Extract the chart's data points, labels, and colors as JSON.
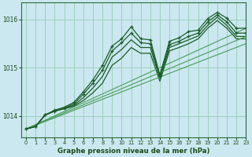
{
  "xlabel": "Graphe pression niveau de la mer (hPa)",
  "xlim": [
    -0.5,
    23
  ],
  "ylim": [
    1013.55,
    1016.35
  ],
  "yticks": [
    1014,
    1015,
    1016
  ],
  "xticks": [
    0,
    1,
    2,
    3,
    4,
    5,
    6,
    7,
    8,
    9,
    10,
    11,
    12,
    13,
    14,
    15,
    16,
    17,
    18,
    19,
    20,
    21,
    22,
    23
  ],
  "bg_color": "#cbe8f0",
  "grid_color": "#9dcfbb",
  "line_color_dark": "#1a5c28",
  "line_color_light": "#4a9c5a",
  "series": [
    {
      "x": [
        0,
        1,
        2,
        3,
        4,
        5,
        6,
        7,
        8,
        9,
        10,
        11,
        12,
        13,
        14,
        15,
        16,
        17,
        18,
        19,
        20,
        21,
        22,
        23
      ],
      "y": [
        1013.73,
        1013.78,
        1014.02,
        1014.12,
        1014.18,
        1014.28,
        1014.5,
        1014.75,
        1015.05,
        1015.45,
        1015.6,
        1015.85,
        1015.6,
        1015.58,
        1014.85,
        1015.55,
        1015.62,
        1015.75,
        1015.78,
        1016.02,
        1016.15,
        1016.03,
        1015.82,
        1015.82
      ],
      "marker": true,
      "lw": 0.9,
      "color": "#1a5c28"
    },
    {
      "x": [
        0,
        1,
        2,
        3,
        4,
        5,
        6,
        7,
        8,
        9,
        10,
        11,
        12,
        13,
        14,
        15,
        16,
        17,
        18,
        19,
        20,
        21,
        22,
        23
      ],
      "y": [
        1013.73,
        1013.78,
        1014.02,
        1014.1,
        1014.16,
        1014.25,
        1014.45,
        1014.68,
        1014.95,
        1015.35,
        1015.52,
        1015.72,
        1015.52,
        1015.5,
        1014.82,
        1015.48,
        1015.55,
        1015.65,
        1015.72,
        1015.95,
        1016.1,
        1015.95,
        1015.72,
        1015.72
      ],
      "marker": true,
      "lw": 0.9,
      "color": "#1a5c28"
    },
    {
      "x": [
        0,
        1,
        2,
        3,
        4,
        5,
        6,
        7,
        8,
        9,
        10,
        11,
        12,
        13,
        14,
        15,
        16,
        17,
        18,
        19,
        20,
        21,
        22,
        23
      ],
      "y": [
        1013.73,
        1013.78,
        1014.02,
        1014.1,
        1014.15,
        1014.22,
        1014.38,
        1014.58,
        1014.82,
        1015.22,
        1015.38,
        1015.58,
        1015.42,
        1015.42,
        1014.78,
        1015.42,
        1015.5,
        1015.58,
        1015.66,
        1015.88,
        1016.05,
        1015.88,
        1015.65,
        1015.65
      ],
      "marker": false,
      "lw": 0.9,
      "color": "#1a5c28"
    },
    {
      "x": [
        0,
        1,
        2,
        3,
        4,
        5,
        6,
        7,
        8,
        9,
        10,
        11,
        12,
        13,
        14,
        15,
        16,
        17,
        18,
        19,
        20,
        21,
        22,
        23
      ],
      "y": [
        1013.73,
        1013.78,
        1014.02,
        1014.1,
        1014.15,
        1014.2,
        1014.32,
        1014.48,
        1014.68,
        1015.05,
        1015.2,
        1015.42,
        1015.3,
        1015.3,
        1014.72,
        1015.35,
        1015.42,
        1015.5,
        1015.6,
        1015.82,
        1015.98,
        1015.82,
        1015.6,
        1015.6
      ],
      "marker": false,
      "lw": 0.9,
      "color": "#1a5c28"
    },
    {
      "x": [
        0,
        23
      ],
      "y": [
        1013.73,
        1015.82
      ],
      "marker": false,
      "lw": 0.8,
      "color": "#4a9c5a"
    },
    {
      "x": [
        0,
        23
      ],
      "y": [
        1013.73,
        1015.65
      ],
      "marker": false,
      "lw": 0.8,
      "color": "#4a9c5a"
    },
    {
      "x": [
        0,
        23
      ],
      "y": [
        1013.73,
        1015.5
      ],
      "marker": false,
      "lw": 0.8,
      "color": "#4a9c5a"
    }
  ]
}
